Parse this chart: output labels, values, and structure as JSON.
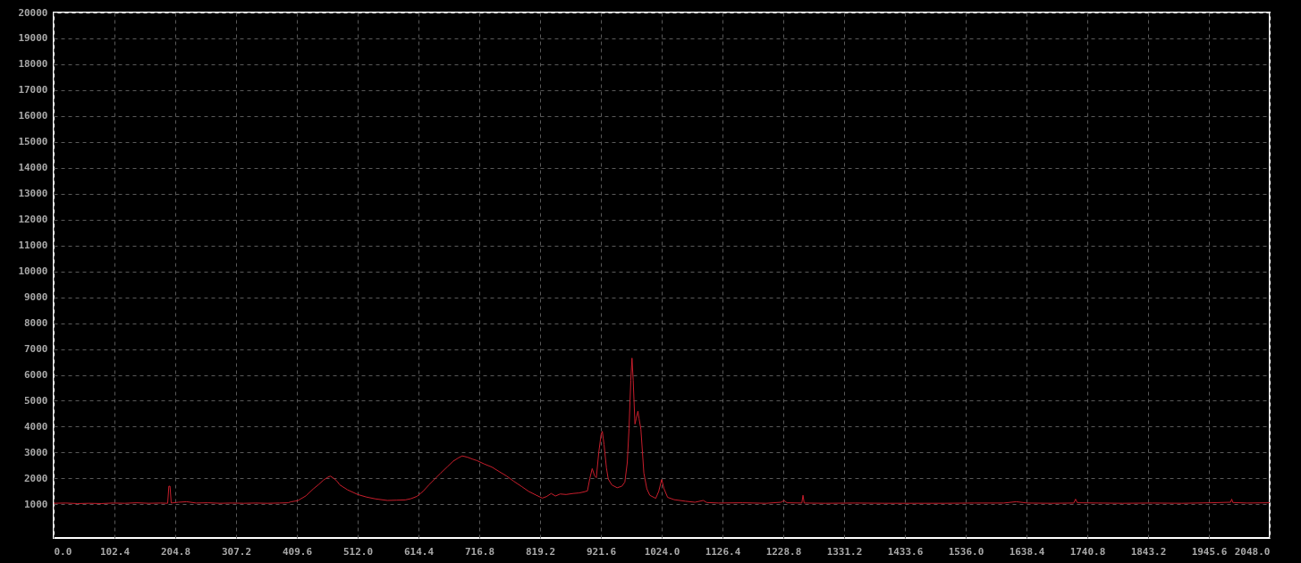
{
  "chart_data": {
    "type": "line",
    "x": [
      0,
      20,
      40,
      60,
      80,
      100,
      120,
      140,
      160,
      180,
      192,
      194,
      196,
      198,
      210,
      224,
      240,
      260,
      280,
      300,
      320,
      340,
      360,
      380,
      395,
      400,
      411,
      425,
      437,
      447,
      454,
      462,
      466,
      472,
      477,
      482,
      495,
      512,
      527,
      542,
      562,
      577,
      592,
      602,
      612,
      622,
      632,
      642,
      652,
      663,
      673,
      682,
      688,
      697,
      705,
      713,
      725,
      738,
      750,
      763,
      775,
      788,
      800,
      813,
      823,
      830,
      838,
      845,
      853,
      863,
      875,
      885,
      893,
      899,
      903,
      907,
      911,
      914,
      918,
      922,
      924,
      927,
      931,
      934,
      940,
      949,
      957,
      962,
      966,
      969,
      972,
      974,
      976,
      979,
      981,
      984,
      986,
      989,
      994,
      999,
      1004,
      1014,
      1019,
      1024,
      1028,
      1034,
      1045,
      1064,
      1080,
      1094,
      1100,
      1120,
      1160,
      1200,
      1225,
      1230,
      1235,
      1260,
      1262,
      1264,
      1300,
      1350,
      1400,
      1450,
      1500,
      1550,
      1600,
      1621,
      1640,
      1680,
      1718,
      1721,
      1724,
      1760,
      1800,
      1850,
      1900,
      1950,
      1982,
      1984,
      1986,
      2010,
      2048
    ],
    "series": [
      {
        "color": "#c81e2c",
        "values": [
          1040,
          1050,
          1030,
          1040,
          1030,
          1050,
          1040,
          1060,
          1040,
          1050,
          1040,
          1700,
          1700,
          1050,
          1080,
          1100,
          1050,
          1060,
          1040,
          1050,
          1040,
          1050,
          1040,
          1050,
          1060,
          1100,
          1140,
          1330,
          1590,
          1780,
          1930,
          2050,
          2090,
          2000,
          1900,
          1750,
          1560,
          1380,
          1280,
          1210,
          1150,
          1160,
          1170,
          1220,
          1310,
          1500,
          1750,
          1980,
          2210,
          2450,
          2670,
          2800,
          2870,
          2820,
          2750,
          2690,
          2560,
          2440,
          2270,
          2090,
          1890,
          1690,
          1500,
          1350,
          1240,
          1300,
          1420,
          1320,
          1400,
          1380,
          1420,
          1440,
          1480,
          1520,
          2000,
          2380,
          2100,
          2030,
          3000,
          3700,
          3820,
          3300,
          2400,
          1980,
          1750,
          1640,
          1700,
          1860,
          2600,
          3930,
          5800,
          6650,
          5800,
          4100,
          4300,
          4600,
          4300,
          3900,
          2210,
          1600,
          1350,
          1230,
          1500,
          1960,
          1600,
          1270,
          1180,
          1120,
          1080,
          1150,
          1070,
          1050,
          1060,
          1040,
          1080,
          1150,
          1060,
          1050,
          1350,
          1050,
          1040,
          1050,
          1040,
          1040,
          1040,
          1050,
          1050,
          1100,
          1050,
          1040,
          1050,
          1200,
          1060,
          1050,
          1040,
          1050,
          1040,
          1060,
          1080,
          1200,
          1070,
          1050,
          1060
        ]
      }
    ],
    "xlim": [
      0,
      2048
    ],
    "xticks": [
      {
        "value": 0,
        "label": "0.0"
      },
      102.4,
      204.8,
      307.2,
      409.6,
      {
        "value": 512,
        "label": "512.0"
      },
      614.4,
      716.8,
      819.2,
      921.6,
      {
        "value": 1024,
        "label": "1024.0"
      },
      1126.4,
      1228.8,
      1331.2,
      1433.6,
      {
        "value": 1536,
        "label": "1536.0"
      },
      1638.4,
      1740.8,
      1843.2,
      1945.6,
      {
        "value": 2048,
        "label": "2048.0"
      }
    ],
    "ylim": [
      -300,
      20000
    ],
    "yticks": [
      1000,
      2000,
      3000,
      4000,
      5000,
      6000,
      7000,
      8000,
      9000,
      10000,
      11000,
      12000,
      13000,
      14000,
      15000,
      16000,
      17000,
      18000,
      19000,
      20000
    ],
    "grid": true
  }
}
